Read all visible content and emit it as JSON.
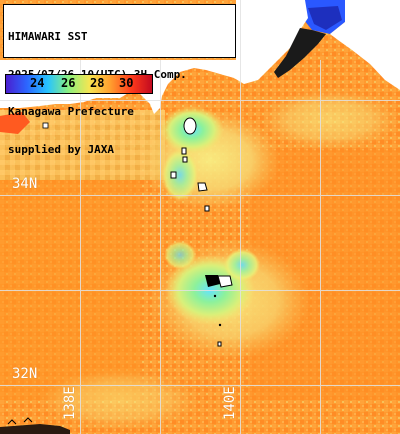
{
  "header": {
    "lines": [
      "HIMAWARI SST",
      "2025/07/26 10(UTC) 3H Comp.",
      "Kanagawa Prefecture",
      "supplied by JAXA"
    ]
  },
  "colorbar": {
    "ticks": [
      "24",
      "26",
      "28",
      "30"
    ],
    "colors": [
      "#4a1fd0",
      "#2c66ff",
      "#27c4ff",
      "#8cf07e",
      "#f6e552",
      "#ff9f2e",
      "#ff3b1b",
      "#c20a20"
    ]
  },
  "grid": {
    "lat_labels": [
      "34N",
      "32N"
    ],
    "lon_labels": [
      "138E",
      "140E"
    ]
  },
  "colors": {
    "land": "#ffffff",
    "grid": "#dedede",
    "sea_warm": "#ff8a24",
    "sea_warm_alt": "#ffa43a",
    "sea_mid": "#f5cb63",
    "sea_cool": "#9ff0a1",
    "sea_cyan": "#3fd8ff",
    "sea_cold": "#1d3bff",
    "cloud_black": "#000000"
  }
}
